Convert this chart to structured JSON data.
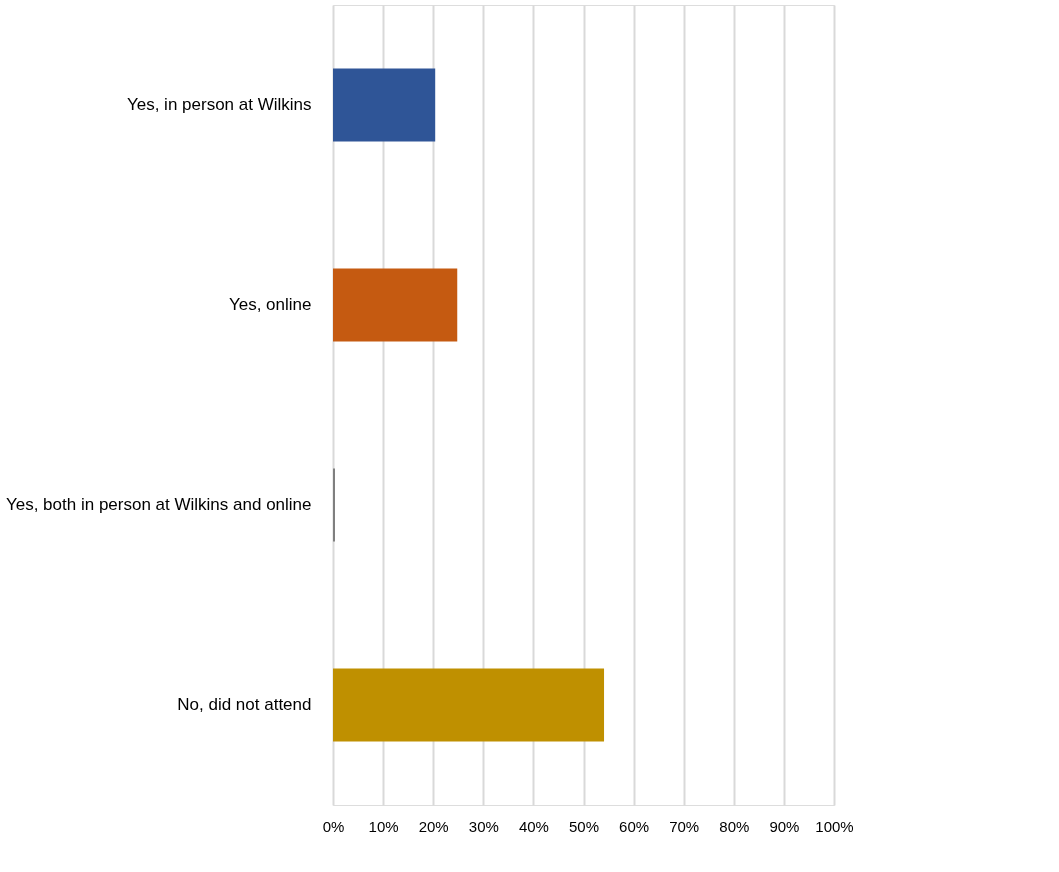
{
  "chart_data": {
    "type": "bar",
    "orientation": "horizontal",
    "categories": [
      "Yes, in person at Wilkins",
      "Yes, online",
      "Yes, both in person at Wilkins and online",
      "No, did not attend"
    ],
    "values": [
      20.4,
      24.8,
      0.4,
      54.1
    ],
    "colors": [
      "#2f5597",
      "#c55a11",
      "#7f7f7f",
      "#bf9000"
    ],
    "xlim": [
      0,
      100
    ],
    "xticks": [
      {
        "value": 0,
        "label": "0%"
      },
      {
        "value": 10,
        "label": "10%"
      },
      {
        "value": 20,
        "label": "20%"
      },
      {
        "value": 30,
        "label": "30%"
      },
      {
        "value": 40,
        "label": "40%"
      },
      {
        "value": 50,
        "label": "50%"
      },
      {
        "value": 60,
        "label": "60%"
      },
      {
        "value": 70,
        "label": "70%"
      },
      {
        "value": 80,
        "label": "80%"
      },
      {
        "value": 90,
        "label": "90%"
      },
      {
        "value": 100,
        "label": "100%"
      }
    ],
    "grid": "x"
  }
}
